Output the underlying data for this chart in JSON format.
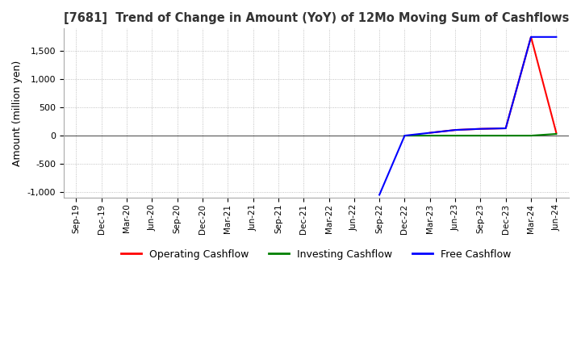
{
  "title": "[7681]  Trend of Change in Amount (YoY) of 12Mo Moving Sum of Cashflows",
  "ylabel": "Amount (million yen)",
  "background_color": "#ffffff",
  "grid_color": "#b0b0b0",
  "legend": [
    "Operating Cashflow",
    "Investing Cashflow",
    "Free Cashflow"
  ],
  "legend_colors": [
    "#ff0000",
    "#008000",
    "#0000ff"
  ],
  "x_labels": [
    "Sep-19",
    "Dec-19",
    "Mar-20",
    "Jun-20",
    "Sep-20",
    "Dec-20",
    "Mar-21",
    "Jun-21",
    "Sep-21",
    "Dec-21",
    "Mar-22",
    "Jun-22",
    "Sep-22",
    "Dec-22",
    "Mar-23",
    "Jun-23",
    "Sep-23",
    "Dec-23",
    "Mar-24",
    "Jun-24"
  ],
  "ylim": [
    -1100,
    1900
  ],
  "yticks": [
    -1000,
    -500,
    0,
    500,
    1000,
    1500
  ],
  "operating": [
    null,
    null,
    null,
    null,
    null,
    null,
    null,
    null,
    null,
    null,
    null,
    null,
    null,
    null,
    50,
    100,
    120,
    130,
    1750,
    50
  ],
  "investing": [
    null,
    null,
    null,
    null,
    null,
    null,
    null,
    null,
    null,
    null,
    null,
    null,
    null,
    0,
    0,
    0,
    0,
    0,
    0,
    30
  ],
  "free": [
    null,
    null,
    null,
    null,
    null,
    null,
    null,
    null,
    null,
    null,
    null,
    null,
    -1050,
    0,
    50,
    100,
    120,
    130,
    1750,
    1750
  ]
}
